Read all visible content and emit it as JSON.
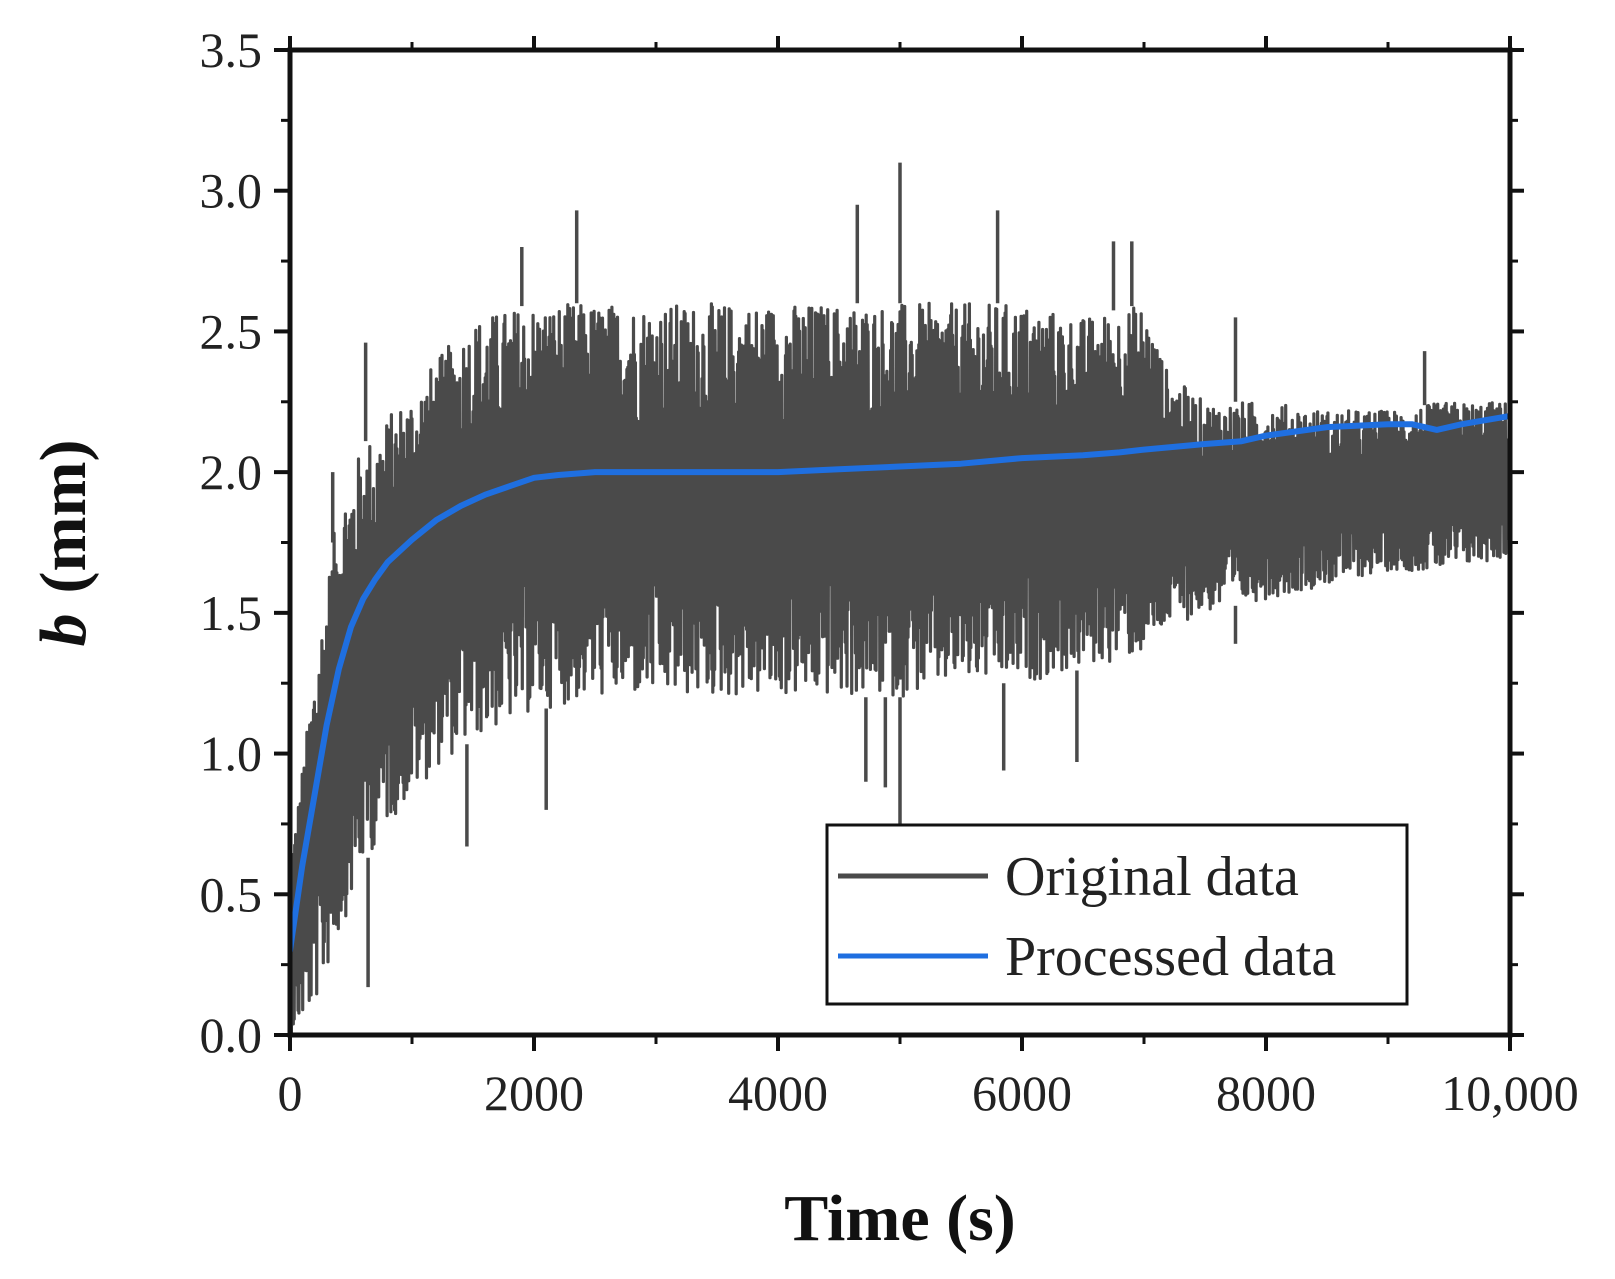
{
  "chart_data": {
    "type": "line",
    "xlabel": "Time (s)",
    "ylabel_italic": "b",
    "ylabel_unit": "(mm)",
    "xlim": [
      0,
      10000
    ],
    "ylim": [
      0,
      3.5
    ],
    "x_ticks": [
      0,
      2000,
      4000,
      6000,
      8000,
      10000
    ],
    "x_tick_labels": [
      "0",
      "2000",
      "4000",
      "6000",
      "8000",
      "10,000"
    ],
    "x_minor_ticks": [
      1000,
      3000,
      5000,
      7000,
      9000
    ],
    "y_ticks": [
      0,
      0.5,
      1.0,
      1.5,
      2.0,
      2.5,
      3.0,
      3.5
    ],
    "y_tick_labels": [
      "0.0",
      "0.5",
      "1.0",
      "1.5",
      "2.0",
      "2.5",
      "3.0",
      "3.5"
    ],
    "y_minor_ticks": [
      0.25,
      0.75,
      1.25,
      1.75,
      2.25,
      2.75,
      3.25
    ],
    "grid": false,
    "legend_position": "bottom-right",
    "series": [
      {
        "name": "Original data",
        "color": "#4a4a4a",
        "style": "noisy",
        "envelope": {
          "x": [
            0,
            200,
            400,
            600,
            800,
            1000,
            1200,
            1500,
            2000,
            2500,
            3000,
            3500,
            4000,
            4500,
            5000,
            5500,
            6000,
            6500,
            7000,
            7200,
            7500,
            8000,
            8500,
            9000,
            9500,
            10000
          ],
          "upper": [
            0.6,
            1.3,
            1.9,
            2.1,
            2.2,
            2.3,
            2.4,
            2.55,
            2.6,
            2.6,
            2.6,
            2.6,
            2.6,
            2.6,
            2.6,
            2.6,
            2.6,
            2.55,
            2.6,
            2.35,
            2.25,
            2.25,
            2.22,
            2.22,
            2.25,
            2.25
          ],
          "lower": [
            0.0,
            0.1,
            0.35,
            0.6,
            0.75,
            0.85,
            0.95,
            1.05,
            1.15,
            1.2,
            1.2,
            1.2,
            1.2,
            1.2,
            1.2,
            1.25,
            1.25,
            1.3,
            1.35,
            1.45,
            1.5,
            1.55,
            1.6,
            1.65,
            1.65,
            1.7
          ]
        },
        "spikes": [
          {
            "x": 350,
            "y": 2.0
          },
          {
            "x": 620,
            "y": 2.46
          },
          {
            "x": 640,
            "y": 0.17
          },
          {
            "x": 1450,
            "y": 0.67
          },
          {
            "x": 1900,
            "y": 2.8
          },
          {
            "x": 2350,
            "y": 2.93
          },
          {
            "x": 2100,
            "y": 0.8
          },
          {
            "x": 4650,
            "y": 2.95
          },
          {
            "x": 4720,
            "y": 0.9
          },
          {
            "x": 4880,
            "y": 0.88
          },
          {
            "x": 5000,
            "y": 3.1
          },
          {
            "x": 5000,
            "y": 0.75
          },
          {
            "x": 5800,
            "y": 2.93
          },
          {
            "x": 5850,
            "y": 0.94
          },
          {
            "x": 6450,
            "y": 0.97
          },
          {
            "x": 6750,
            "y": 2.82
          },
          {
            "x": 6900,
            "y": 2.82
          },
          {
            "x": 7750,
            "y": 2.55
          },
          {
            "x": 7750,
            "y": 1.39
          },
          {
            "x": 9300,
            "y": 2.43
          }
        ]
      },
      {
        "name": "Processed data",
        "color": "#1f6fe0",
        "x": [
          0,
          100,
          200,
          300,
          400,
          500,
          600,
          700,
          800,
          900,
          1000,
          1200,
          1400,
          1600,
          1800,
          2000,
          2200,
          2500,
          3000,
          3500,
          4000,
          4500,
          5000,
          5500,
          6000,
          6500,
          6800,
          7000,
          7500,
          7800,
          8000,
          8500,
          9000,
          9200,
          9400,
          9600,
          10000
        ],
        "y": [
          0.3,
          0.6,
          0.85,
          1.1,
          1.3,
          1.45,
          1.55,
          1.62,
          1.68,
          1.72,
          1.76,
          1.83,
          1.88,
          1.92,
          1.95,
          1.98,
          1.99,
          2.0,
          2.0,
          2.0,
          2.0,
          2.01,
          2.02,
          2.03,
          2.05,
          2.06,
          2.07,
          2.08,
          2.1,
          2.11,
          2.13,
          2.16,
          2.17,
          2.17,
          2.15,
          2.17,
          2.2
        ]
      }
    ]
  }
}
